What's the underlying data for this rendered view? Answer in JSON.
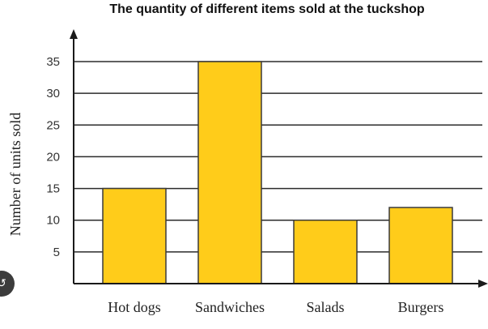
{
  "chart_data": {
    "type": "bar",
    "title": "The quantity of different items sold at the tuckshop",
    "xlabel": "",
    "ylabel": "Number of units sold",
    "categories": [
      "Hot dogs",
      "Sandwiches",
      "Salads",
      "Burgers"
    ],
    "values": [
      15,
      35,
      10,
      12
    ],
    "ylim": [
      0,
      35
    ],
    "yticks": [
      5,
      10,
      15,
      20,
      25,
      30,
      35
    ],
    "grid": true,
    "bar_color": "#ffcc1a"
  },
  "overlay": {
    "share_icon": "share-icon"
  }
}
